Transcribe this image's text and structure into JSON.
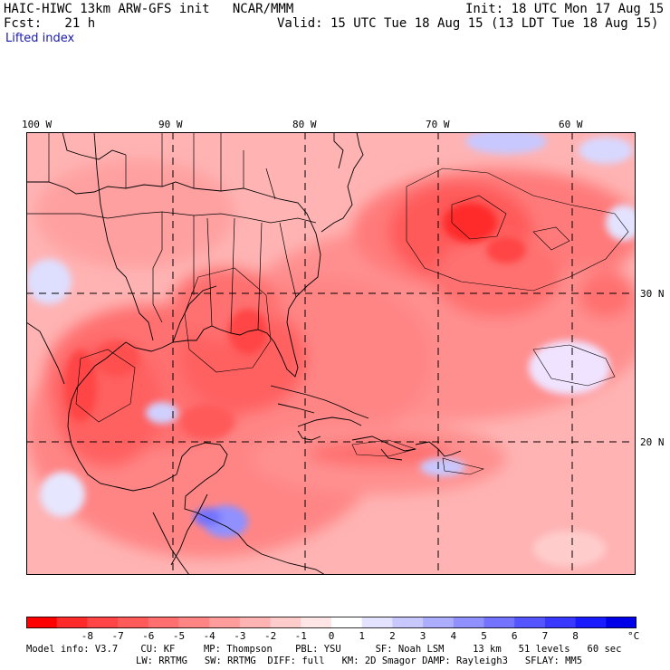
{
  "header": {
    "model_line": "HAIC-HIWC 13km ARW-GFS init   NCAR/MMM",
    "init_line": "Init: 18 UTC Mon 17 Aug 15",
    "fcst_line": "Fcst:   21 h",
    "valid_line": "Valid: 15 UTC Tue 18 Aug 15 (13 LDT Tue 18 Aug 15)",
    "field_label": "Lifted index"
  },
  "map": {
    "lon_labels": [
      "100 W",
      "90 W",
      "80 W",
      "70 W",
      "60 W"
    ],
    "lat_labels": [
      "30 N",
      "20 N"
    ]
  },
  "colorbar": {
    "colors": [
      "#ff0000",
      "#ff2a2a",
      "#ff4545",
      "#ff5a5a",
      "#ff6f6f",
      "#ff8585",
      "#ff9c9c",
      "#ffb3b3",
      "#ffcccc",
      "#ffe6e6",
      "#ffffff",
      "#e3e3ff",
      "#c8c8ff",
      "#adadff",
      "#9090ff",
      "#7373ff",
      "#5555ff",
      "#3838ff",
      "#1a1aff",
      "#0000e8"
    ],
    "tick_labels": [
      "-8",
      "-7",
      "-6",
      "-5",
      "-4",
      "-3",
      "-2",
      "-1",
      "0",
      "1",
      "2",
      "3",
      "4",
      "5",
      "6",
      "7",
      "8"
    ],
    "unit": "°C"
  },
  "footer": {
    "line1": "Model info: V3.7    CU: KF     MP: Thompson    PBL: YSU      SF: Noah LSM     13 km   51 levels   60 sec",
    "line2": "LW: RRTMG   SW: RRTMG  DIFF: full   KM: 2D Smagor DAMP: Rayleigh3   SFLAY: MM5"
  }
}
